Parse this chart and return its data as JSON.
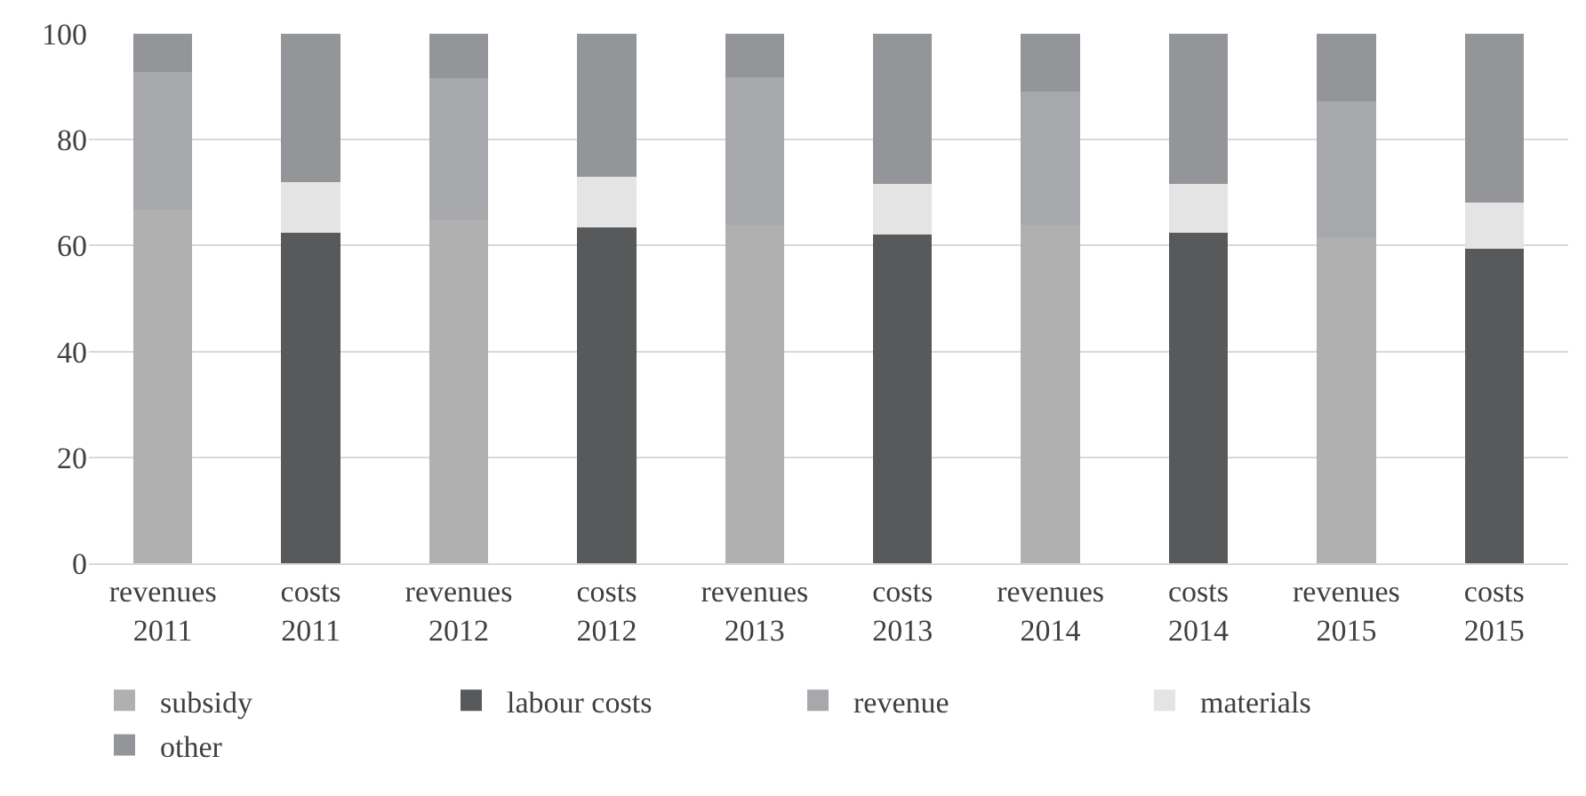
{
  "chart_data": {
    "type": "bar",
    "stacked": true,
    "categories": [
      "revenues\n2011",
      "costs\n2011",
      "revenues\n2012",
      "costs\n2012",
      "revenues\n2013",
      "costs\n2013",
      "revenues\n2014",
      "costs\n2014",
      "revenues\n2015",
      "costs\n2015"
    ],
    "series": [
      {
        "name": "subsidy",
        "color": "#b0b0b0",
        "values": [
          66.7,
          null,
          64.9,
          null,
          64.0,
          null,
          63.9,
          null,
          61.5,
          null
        ]
      },
      {
        "name": "labour costs",
        "color": "#58595b",
        "values": [
          null,
          62.5,
          null,
          63.4,
          null,
          62.1,
          null,
          62.4,
          null,
          59.4
        ]
      },
      {
        "name": "revenue",
        "color": "#a7a8ab",
        "values": [
          26.1,
          null,
          26.7,
          null,
          27.8,
          null,
          25.2,
          null,
          25.8,
          null
        ]
      },
      {
        "name": "materials",
        "color": "#e4e4e4",
        "values": [
          null,
          9.4,
          null,
          9.6,
          null,
          9.5,
          null,
          9.2,
          null,
          8.8
        ]
      },
      {
        "name": "other",
        "color": "#949598",
        "values": [
          7.2,
          28.1,
          8.4,
          27.0,
          8.2,
          28.4,
          10.9,
          28.4,
          12.7,
          31.8
        ]
      }
    ],
    "ylim": [
      0,
      100
    ],
    "yticks": [
      0,
      20,
      40,
      60,
      80,
      100
    ],
    "grid": "y",
    "legend": "bottom"
  }
}
